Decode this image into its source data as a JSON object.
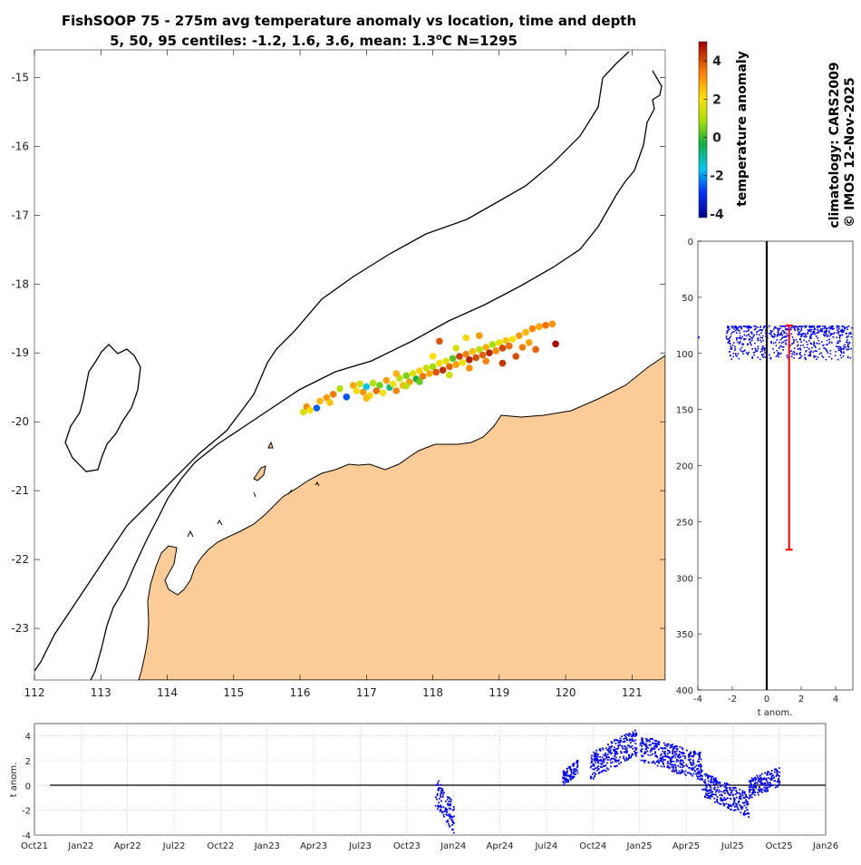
{
  "title": {
    "line1": "FishSOOP 75 - 275m avg temperature anomaly vs location, time and depth",
    "line2_prefix": "5, 50, 95 centiles: -1.2, 1.6, 3.6, mean: 1.3",
    "line2_sup": "o",
    "line2_suffix": "C N=1295"
  },
  "credits": {
    "climatology": "climatology: CARS2009",
    "copyright": "© IMOS 12-Nov-2025"
  },
  "colors": {
    "land": "#fbcb98",
    "contour": "#000000",
    "profile_points": "#0000ff",
    "mean_bar": "#ff0000",
    "zero_line": "#000000",
    "grid": "#b8b8cc"
  },
  "chart_data": [
    {
      "type": "scatter",
      "name": "map",
      "xlabel": "",
      "ylabel": "",
      "xlim": [
        112,
        121.5
      ],
      "ylim": [
        -23.75,
        -14.6
      ],
      "xticks": [
        "112",
        "113",
        "114",
        "115",
        "116",
        "117",
        "118",
        "119",
        "120",
        "121"
      ],
      "yticks": [
        "-15",
        "-16",
        "-17",
        "-18",
        "-19",
        "-20",
        "-21",
        "-22",
        "-23"
      ],
      "color_variable": "temperature anomaly",
      "colorbar": {
        "label": "temperature anomaly",
        "range": [
          -4.2,
          5
        ],
        "ticks": [
          "4",
          "2",
          "0",
          "-2",
          "-4"
        ]
      },
      "points": [
        {
          "lon": 116.05,
          "lat": -19.86,
          "v": 1.5
        },
        {
          "lon": 116.1,
          "lat": -19.78,
          "v": 3.2
        },
        {
          "lon": 116.15,
          "lat": -19.83,
          "v": 2.1
        },
        {
          "lon": 116.25,
          "lat": -19.8,
          "v": -2.5
        },
        {
          "lon": 116.3,
          "lat": -19.7,
          "v": 2.6
        },
        {
          "lon": 116.4,
          "lat": -19.65,
          "v": 3.0
        },
        {
          "lon": 116.45,
          "lat": -19.72,
          "v": 2.4
        },
        {
          "lon": 116.5,
          "lat": -19.6,
          "v": 3.4
        },
        {
          "lon": 116.6,
          "lat": -19.52,
          "v": 1.0
        },
        {
          "lon": 116.7,
          "lat": -19.64,
          "v": -2.6
        },
        {
          "lon": 116.8,
          "lat": -19.47,
          "v": 2.8
        },
        {
          "lon": 116.9,
          "lat": -19.45,
          "v": 1.4
        },
        {
          "lon": 116.95,
          "lat": -19.57,
          "v": 3.1
        },
        {
          "lon": 117.0,
          "lat": -19.49,
          "v": -1.6
        },
        {
          "lon": 117.05,
          "lat": -19.62,
          "v": 2.2
        },
        {
          "lon": 117.1,
          "lat": -19.44,
          "v": 1.0
        },
        {
          "lon": 117.15,
          "lat": -19.55,
          "v": 3.6
        },
        {
          "lon": 117.2,
          "lat": -19.47,
          "v": 0.4
        },
        {
          "lon": 117.25,
          "lat": -19.58,
          "v": 1.9
        },
        {
          "lon": 117.3,
          "lat": -19.4,
          "v": 2.9
        },
        {
          "lon": 117.35,
          "lat": -19.5,
          "v": -0.8
        },
        {
          "lon": 117.4,
          "lat": -19.45,
          "v": 2.0
        },
        {
          "lon": 117.45,
          "lat": -19.55,
          "v": 3.3
        },
        {
          "lon": 117.5,
          "lat": -19.37,
          "v": 1.2
        },
        {
          "lon": 117.55,
          "lat": -19.47,
          "v": 2.6
        },
        {
          "lon": 117.6,
          "lat": -19.33,
          "v": 0.5
        },
        {
          "lon": 117.65,
          "lat": -19.42,
          "v": 3.0
        },
        {
          "lon": 117.7,
          "lat": -19.3,
          "v": 1.7
        },
        {
          "lon": 117.75,
          "lat": -19.38,
          "v": -0.3
        },
        {
          "lon": 117.8,
          "lat": -19.26,
          "v": 2.3
        },
        {
          "lon": 117.85,
          "lat": -19.34,
          "v": 3.5
        },
        {
          "lon": 117.9,
          "lat": -19.22,
          "v": 1.3
        },
        {
          "lon": 117.95,
          "lat": -19.3,
          "v": 2.8
        },
        {
          "lon": 118.0,
          "lat": -19.2,
          "v": 0.8
        },
        {
          "lon": 118.05,
          "lat": -19.28,
          "v": 3.9
        },
        {
          "lon": 118.1,
          "lat": -19.15,
          "v": 2.1
        },
        {
          "lon": 118.15,
          "lat": -19.25,
          "v": 4.4
        },
        {
          "lon": 118.2,
          "lat": -19.12,
          "v": 1.6
        },
        {
          "lon": 118.25,
          "lat": -19.2,
          "v": 3.7
        },
        {
          "lon": 118.3,
          "lat": -19.08,
          "v": 0.2
        },
        {
          "lon": 118.35,
          "lat": -19.17,
          "v": 2.9
        },
        {
          "lon": 118.4,
          "lat": -19.05,
          "v": 4.2
        },
        {
          "lon": 118.45,
          "lat": -19.14,
          "v": 1.9
        },
        {
          "lon": 118.5,
          "lat": -19.02,
          "v": 3.4
        },
        {
          "lon": 118.55,
          "lat": -19.1,
          "v": 4.6
        },
        {
          "lon": 118.6,
          "lat": -18.98,
          "v": 2.5
        },
        {
          "lon": 118.65,
          "lat": -19.07,
          "v": 4.0
        },
        {
          "lon": 118.7,
          "lat": -18.95,
          "v": 1.1
        },
        {
          "lon": 118.75,
          "lat": -19.03,
          "v": 3.8
        },
        {
          "lon": 118.8,
          "lat": -18.92,
          "v": 2.7
        },
        {
          "lon": 118.85,
          "lat": -19.0,
          "v": 4.5
        },
        {
          "lon": 118.9,
          "lat": -18.88,
          "v": 0.9
        },
        {
          "lon": 118.95,
          "lat": -18.97,
          "v": 3.2
        },
        {
          "lon": 119.0,
          "lat": -18.85,
          "v": 1.8
        },
        {
          "lon": 119.05,
          "lat": -18.93,
          "v": 4.1
        },
        {
          "lon": 119.1,
          "lat": -18.82,
          "v": 2.4
        },
        {
          "lon": 119.15,
          "lat": -18.9,
          "v": 3.6
        },
        {
          "lon": 119.2,
          "lat": -18.8,
          "v": 2.0
        },
        {
          "lon": 119.3,
          "lat": -18.75,
          "v": 3.0
        },
        {
          "lon": 119.4,
          "lat": -18.7,
          "v": 2.6
        },
        {
          "lon": 119.5,
          "lat": -18.65,
          "v": 3.3
        },
        {
          "lon": 119.6,
          "lat": -18.62,
          "v": 2.8
        },
        {
          "lon": 119.7,
          "lat": -18.6,
          "v": 3.5
        },
        {
          "lon": 119.8,
          "lat": -18.58,
          "v": 3.1
        },
        {
          "lon": 119.85,
          "lat": -18.87,
          "v": 4.8
        },
        {
          "lon": 118.1,
          "lat": -18.83,
          "v": 3.9
        },
        {
          "lon": 118.5,
          "lat": -18.78,
          "v": 2.2
        },
        {
          "lon": 118.7,
          "lat": -18.75,
          "v": 3.0
        },
        {
          "lon": 119.25,
          "lat": -19.05,
          "v": 4.0
        },
        {
          "lon": 119.35,
          "lat": -18.92,
          "v": 3.4
        },
        {
          "lon": 119.45,
          "lat": -18.85,
          "v": 2.9
        },
        {
          "lon": 119.55,
          "lat": -18.95,
          "v": 3.7
        },
        {
          "lon": 117.6,
          "lat": -19.48,
          "v": 1.1
        },
        {
          "lon": 117.45,
          "lat": -19.3,
          "v": 2.7
        },
        {
          "lon": 117.8,
          "lat": -19.42,
          "v": 0.3
        },
        {
          "lon": 118.25,
          "lat": -19.32,
          "v": 1.4
        },
        {
          "lon": 118.55,
          "lat": -19.22,
          "v": 3.1
        },
        {
          "lon": 117.0,
          "lat": -19.66,
          "v": 2.5
        },
        {
          "lon": 116.85,
          "lat": -19.55,
          "v": 1.8
        },
        {
          "lon": 118.0,
          "lat": -19.05,
          "v": 2.0
        },
        {
          "lon": 118.35,
          "lat": -18.93,
          "v": 1.5
        },
        {
          "lon": 118.8,
          "lat": -19.12,
          "v": 3.3
        },
        {
          "lon": 119.05,
          "lat": -19.15,
          "v": 4.3
        }
      ]
    },
    {
      "type": "scatter",
      "name": "depth-profile",
      "xlabel": "t anom.",
      "ylabel": "",
      "xlim": [
        -4,
        5
      ],
      "ylim": [
        400,
        0
      ],
      "xticks": [
        "-4",
        "-2",
        "0",
        "2",
        "4"
      ],
      "yticks": [
        "0",
        "50",
        "100",
        "150",
        "200",
        "250",
        "300",
        "350",
        "400"
      ],
      "depth_range": [
        75,
        105
      ],
      "mean_bar": {
        "x": 1.3,
        "depth_top": 75,
        "depth_bottom": 275
      },
      "zero_line_x": 0
    },
    {
      "type": "scatter",
      "name": "time-series",
      "xlabel": "",
      "ylabel": "t anom.",
      "xlim": [
        0,
        51
      ],
      "ylim": [
        -4,
        5
      ],
      "xticks": [
        "Oct21",
        "Jan22",
        "Apr22",
        "Jul22",
        "Oct22",
        "Jan23",
        "Apr23",
        "Jul23",
        "Oct23",
        "Jan24",
        "Apr24",
        "Jul24",
        "Oct24",
        "Jan25",
        "Apr25",
        "Jul25",
        "Oct25",
        "Jan26"
      ],
      "yticks": [
        "4",
        "2",
        "0",
        "-2",
        "-4"
      ],
      "zero_line_y": 0,
      "clusters": [
        {
          "t_start": 25.8,
          "t_end": 27.0,
          "v_start": -0.4,
          "v_end": -2.6,
          "spread": 1.2
        },
        {
          "t_start": 34.0,
          "t_end": 35.0,
          "v_start": 0.6,
          "v_end": 1.6,
          "spread": 0.6
        },
        {
          "t_start": 35.8,
          "t_end": 38.8,
          "v_start": 1.6,
          "v_end": 3.6,
          "spread": 1.1
        },
        {
          "t_start": 39.0,
          "t_end": 43.0,
          "v_start": 3.0,
          "v_end": 1.6,
          "spread": 1.1
        },
        {
          "t_start": 43.0,
          "t_end": 46.0,
          "v_start": 0.2,
          "v_end": -1.6,
          "spread": 1.0
        },
        {
          "t_start": 46.0,
          "t_end": 48.0,
          "v_start": -0.2,
          "v_end": 0.8,
          "spread": 0.8
        }
      ]
    }
  ]
}
